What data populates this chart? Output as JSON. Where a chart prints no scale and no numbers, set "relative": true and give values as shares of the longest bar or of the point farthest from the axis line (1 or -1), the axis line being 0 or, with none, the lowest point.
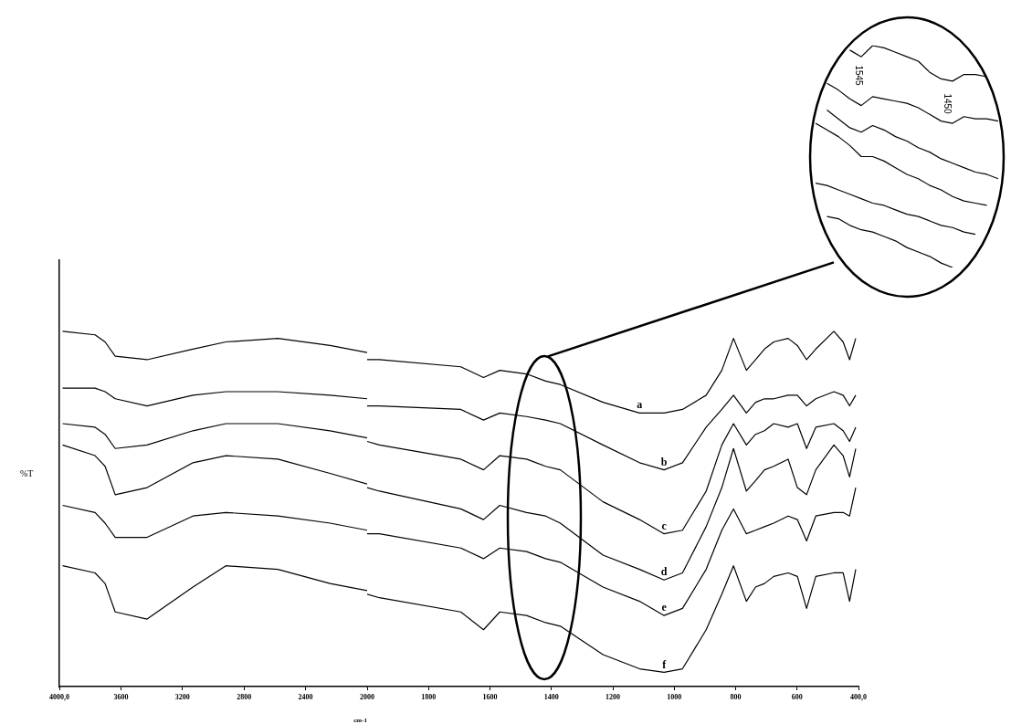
{
  "chart_data": [
    {
      "type": "line",
      "relative": true,
      "ylabel": "%T",
      "marker": "none",
      "line_style": "solid",
      "tick_labels": "x",
      "x": [
        3979,
        3768,
        3703,
        3637,
        3430,
        3132,
        2918,
        2580,
        2241,
        2000
      ],
      "xlim": [
        4000,
        2000
      ],
      "xticks": [
        {
          "value": 4000,
          "label": "4000,0"
        },
        3600,
        3200,
        2800,
        2400
      ],
      "series": [
        {
          "color": "#000000",
          "values": [
            1,
            0.99,
            0.97,
            0.93,
            0.92,
            0.95,
            0.97,
            0.98,
            0.96,
            0.94
          ]
        },
        {
          "color": "#000000",
          "values": [
            0.84,
            0.84,
            0.83,
            0.81,
            0.79,
            0.82,
            0.83,
            0.83,
            0.82,
            0.81
          ]
        },
        {
          "color": "#000000",
          "values": [
            0.74,
            0.73,
            0.71,
            0.67,
            0.68,
            0.72,
            0.74,
            0.74,
            0.72,
            0.7
          ]
        },
        {
          "color": "#000000",
          "values": [
            0.68,
            0.65,
            0.62,
            0.54,
            0.56,
            0.63,
            0.65,
            0.64,
            0.6,
            0.57
          ]
        },
        {
          "color": "#000000",
          "values": [
            0.51,
            0.49,
            0.46,
            0.42,
            0.42,
            0.48,
            0.49,
            0.48,
            0.46,
            0.44
          ]
        },
        {
          "color": "#000000",
          "values": [
            0.34,
            0.32,
            0.29,
            0.21,
            0.19,
            0.28,
            0.34,
            0.33,
            0.29,
            0.27
          ]
        }
      ]
    },
    {
      "type": "line",
      "relative": true,
      "xlabel": "cm-1",
      "marker": "none",
      "line_style": "solid",
      "tick_labels": "x",
      "x": [
        2000,
        1960,
        1695,
        1621,
        1568,
        1481,
        1419,
        1371,
        1232,
        1113,
        1033,
        973,
        896,
        845,
        807,
        765,
        735,
        706,
        676,
        629,
        599,
        569,
        539,
        480,
        450,
        429,
        409
      ],
      "xlim": [
        2000,
        400
      ],
      "xticks": [
        2000,
        1800,
        1600,
        1400,
        1200,
        1000,
        800,
        600,
        {
          "value": 400,
          "label": "400,0"
        }
      ],
      "series": [
        {
          "name": "a",
          "color": "#000000",
          "values": [
            0.92,
            0.92,
            0.9,
            0.87,
            0.89,
            0.88,
            0.86,
            0.85,
            0.8,
            0.77,
            0.77,
            0.78,
            0.82,
            0.89,
            0.98,
            0.89,
            0.92,
            0.95,
            0.97,
            0.98,
            0.96,
            0.92,
            0.95,
            1,
            0.97,
            0.92,
            0.98
          ]
        },
        {
          "name": "b",
          "color": "#000000",
          "values": [
            0.79,
            0.79,
            0.78,
            0.75,
            0.77,
            0.76,
            0.75,
            0.74,
            0.68,
            0.63,
            0.61,
            0.63,
            0.73,
            0.78,
            0.82,
            0.77,
            0.8,
            0.81,
            0.81,
            0.82,
            0.82,
            0.79,
            0.81,
            0.83,
            0.82,
            0.79,
            0.82
          ]
        },
        {
          "name": "c",
          "color": "#000000",
          "values": [
            0.69,
            0.68,
            0.64,
            0.61,
            0.65,
            0.64,
            0.62,
            0.61,
            0.52,
            0.47,
            0.43,
            0.44,
            0.55,
            0.68,
            0.74,
            0.68,
            0.71,
            0.72,
            0.74,
            0.73,
            0.74,
            0.67,
            0.73,
            0.74,
            0.72,
            0.69,
            0.73
          ]
        },
        {
          "name": "d",
          "color": "#000000",
          "values": [
            0.56,
            0.55,
            0.5,
            0.47,
            0.51,
            0.49,
            0.48,
            0.46,
            0.37,
            0.33,
            0.3,
            0.32,
            0.45,
            0.56,
            0.67,
            0.55,
            0.58,
            0.61,
            0.62,
            0.64,
            0.56,
            0.54,
            0.61,
            0.68,
            0.65,
            0.59,
            0.67
          ]
        },
        {
          "name": "e",
          "color": "#000000",
          "values": [
            0.43,
            0.43,
            0.39,
            0.36,
            0.39,
            0.38,
            0.36,
            0.35,
            0.28,
            0.24,
            0.2,
            0.22,
            0.33,
            0.44,
            0.5,
            0.43,
            0.44,
            0.45,
            0.46,
            0.48,
            0.47,
            0.41,
            0.48,
            0.49,
            0.49,
            0.48,
            0.56
          ]
        },
        {
          "name": "f",
          "color": "#000000",
          "values": [
            0.26,
            0.25,
            0.21,
            0.16,
            0.21,
            0.2,
            0.18,
            0.17,
            0.09,
            0.05,
            0.04,
            0.05,
            0.16,
            0.26,
            0.34,
            0.24,
            0.28,
            0.29,
            0.31,
            0.32,
            0.31,
            0.22,
            0.31,
            0.32,
            0.32,
            0.24,
            0.33
          ]
        }
      ]
    },
    {
      "type": "line",
      "relative": true,
      "marker": "none",
      "line_style": "solid",
      "tick_labels": false,
      "categories": [
        null,
        null,
        null,
        null,
        null,
        null,
        null,
        null,
        null,
        null,
        null,
        null,
        null,
        null,
        null,
        null,
        null
      ],
      "series": [
        {
          "color": "#000000",
          "values": [
            null,
            null,
            null,
            0.98,
            0.95,
            1,
            0.99,
            0.97,
            0.95,
            0.93,
            0.88,
            0.85,
            0.84,
            0.87,
            0.87,
            0.86,
            null
          ]
        },
        {
          "color": "#000000",
          "values": [
            null,
            0.83,
            0.8,
            0.76,
            0.73,
            0.77,
            0.76,
            0.75,
            0.74,
            0.72,
            0.69,
            0.66,
            0.65,
            0.68,
            0.67,
            0.67,
            0.66
          ]
        },
        {
          "color": "#000000",
          "values": [
            null,
            0.71,
            0.67,
            0.63,
            0.61,
            0.64,
            0.62,
            0.59,
            0.57,
            0.54,
            0.52,
            0.49,
            0.47,
            0.45,
            0.43,
            0.42,
            0.4
          ]
        },
        {
          "color": "#000000",
          "values": [
            0.65,
            0.62,
            0.59,
            0.55,
            0.5,
            0.5,
            0.48,
            0.45,
            0.42,
            0.4,
            0.37,
            0.35,
            0.32,
            0.3,
            0.29,
            0.28,
            null
          ]
        },
        {
          "color": "#000000",
          "values": [
            0.38,
            0.37,
            0.35,
            0.33,
            0.31,
            0.29,
            0.28,
            0.26,
            0.24,
            0.23,
            0.21,
            0.19,
            0.18,
            0.16,
            0.15,
            null,
            null
          ]
        },
        {
          "color": "#000000",
          "values": [
            null,
            0.23,
            0.22,
            0.19,
            0.17,
            0.16,
            0.14,
            0.12,
            0.09,
            0.07,
            0.05,
            0.02,
            0,
            null,
            null,
            null,
            null
          ]
        }
      ],
      "annotations": [
        "1545",
        "1450"
      ]
    }
  ]
}
